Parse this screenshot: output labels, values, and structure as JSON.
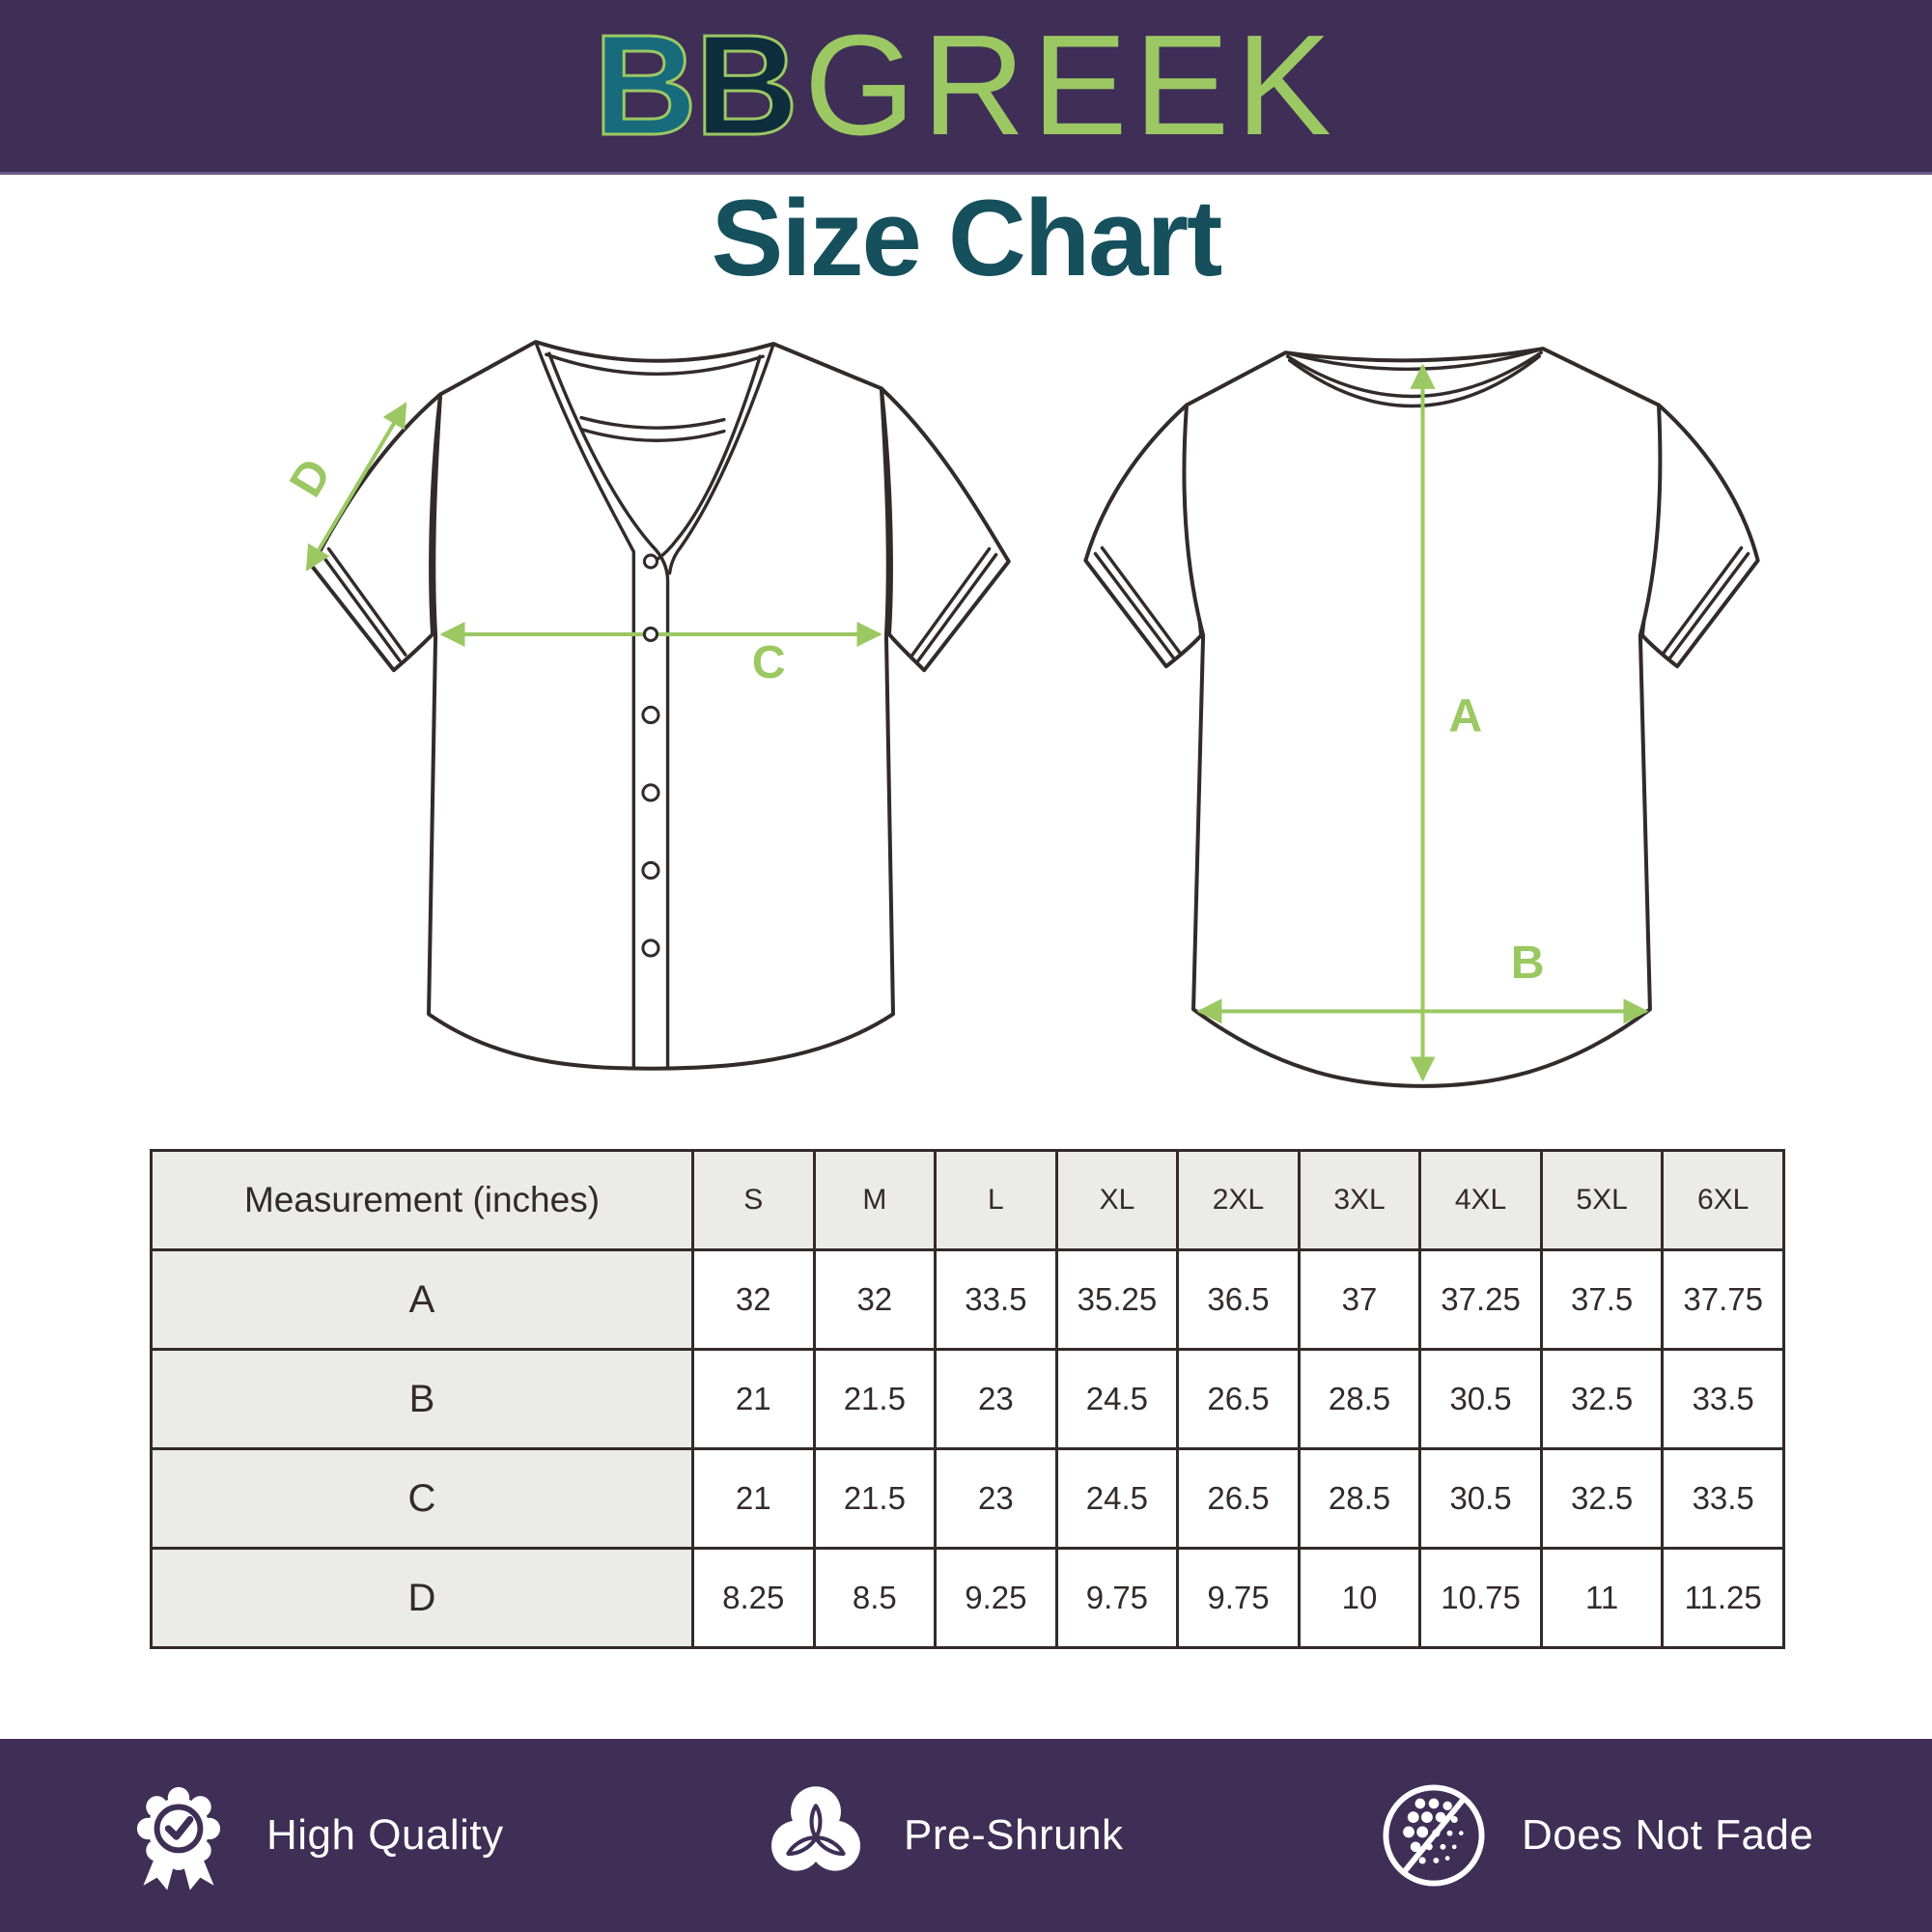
{
  "header": {
    "logo_b1": "B",
    "logo_b2": "B",
    "logo_rest": "GREEK"
  },
  "title": "Size Chart",
  "diagrams": {
    "front": {
      "labels": {
        "c": "C",
        "d": "D"
      }
    },
    "back": {
      "labels": {
        "a": "A",
        "b": "B"
      }
    }
  },
  "chart_data": {
    "type": "table",
    "title": "Size Chart",
    "columns": [
      "Measurement (inches)",
      "S",
      "M",
      "L",
      "XL",
      "2XL",
      "3XL",
      "4XL",
      "5XL",
      "6XL"
    ],
    "rows": [
      {
        "label": "A",
        "values": [
          "32",
          "32",
          "33.5",
          "35.25",
          "36.5",
          "37",
          "37.25",
          "37.5",
          "37.75"
        ]
      },
      {
        "label": "B",
        "values": [
          "21",
          "21.5",
          "23",
          "24.5",
          "26.5",
          "28.5",
          "30.5",
          "32.5",
          "33.5"
        ]
      },
      {
        "label": "C",
        "values": [
          "21",
          "21.5",
          "23",
          "24.5",
          "26.5",
          "28.5",
          "30.5",
          "32.5",
          "33.5"
        ]
      },
      {
        "label": "D",
        "values": [
          "8.25",
          "8.5",
          "9.25",
          "9.75",
          "9.75",
          "10",
          "10.75",
          "11",
          "11.25"
        ]
      }
    ]
  },
  "footer": {
    "features": [
      {
        "icon": "medal-check-icon",
        "label": "High Quality"
      },
      {
        "icon": "pre-shrunk-circles-icon",
        "label": "Pre-Shrunk"
      },
      {
        "icon": "no-fade-icon",
        "label": "Does Not Fade"
      }
    ]
  },
  "colors": {
    "banner_purple": "#3f2e56",
    "logo_teal": "#176b7b",
    "logo_navy": "#0e2d3d",
    "accent_green": "#9cc863",
    "title_teal": "#16505c",
    "table_ink": "#322a2b",
    "table_header_bg": "#ebebe9"
  }
}
